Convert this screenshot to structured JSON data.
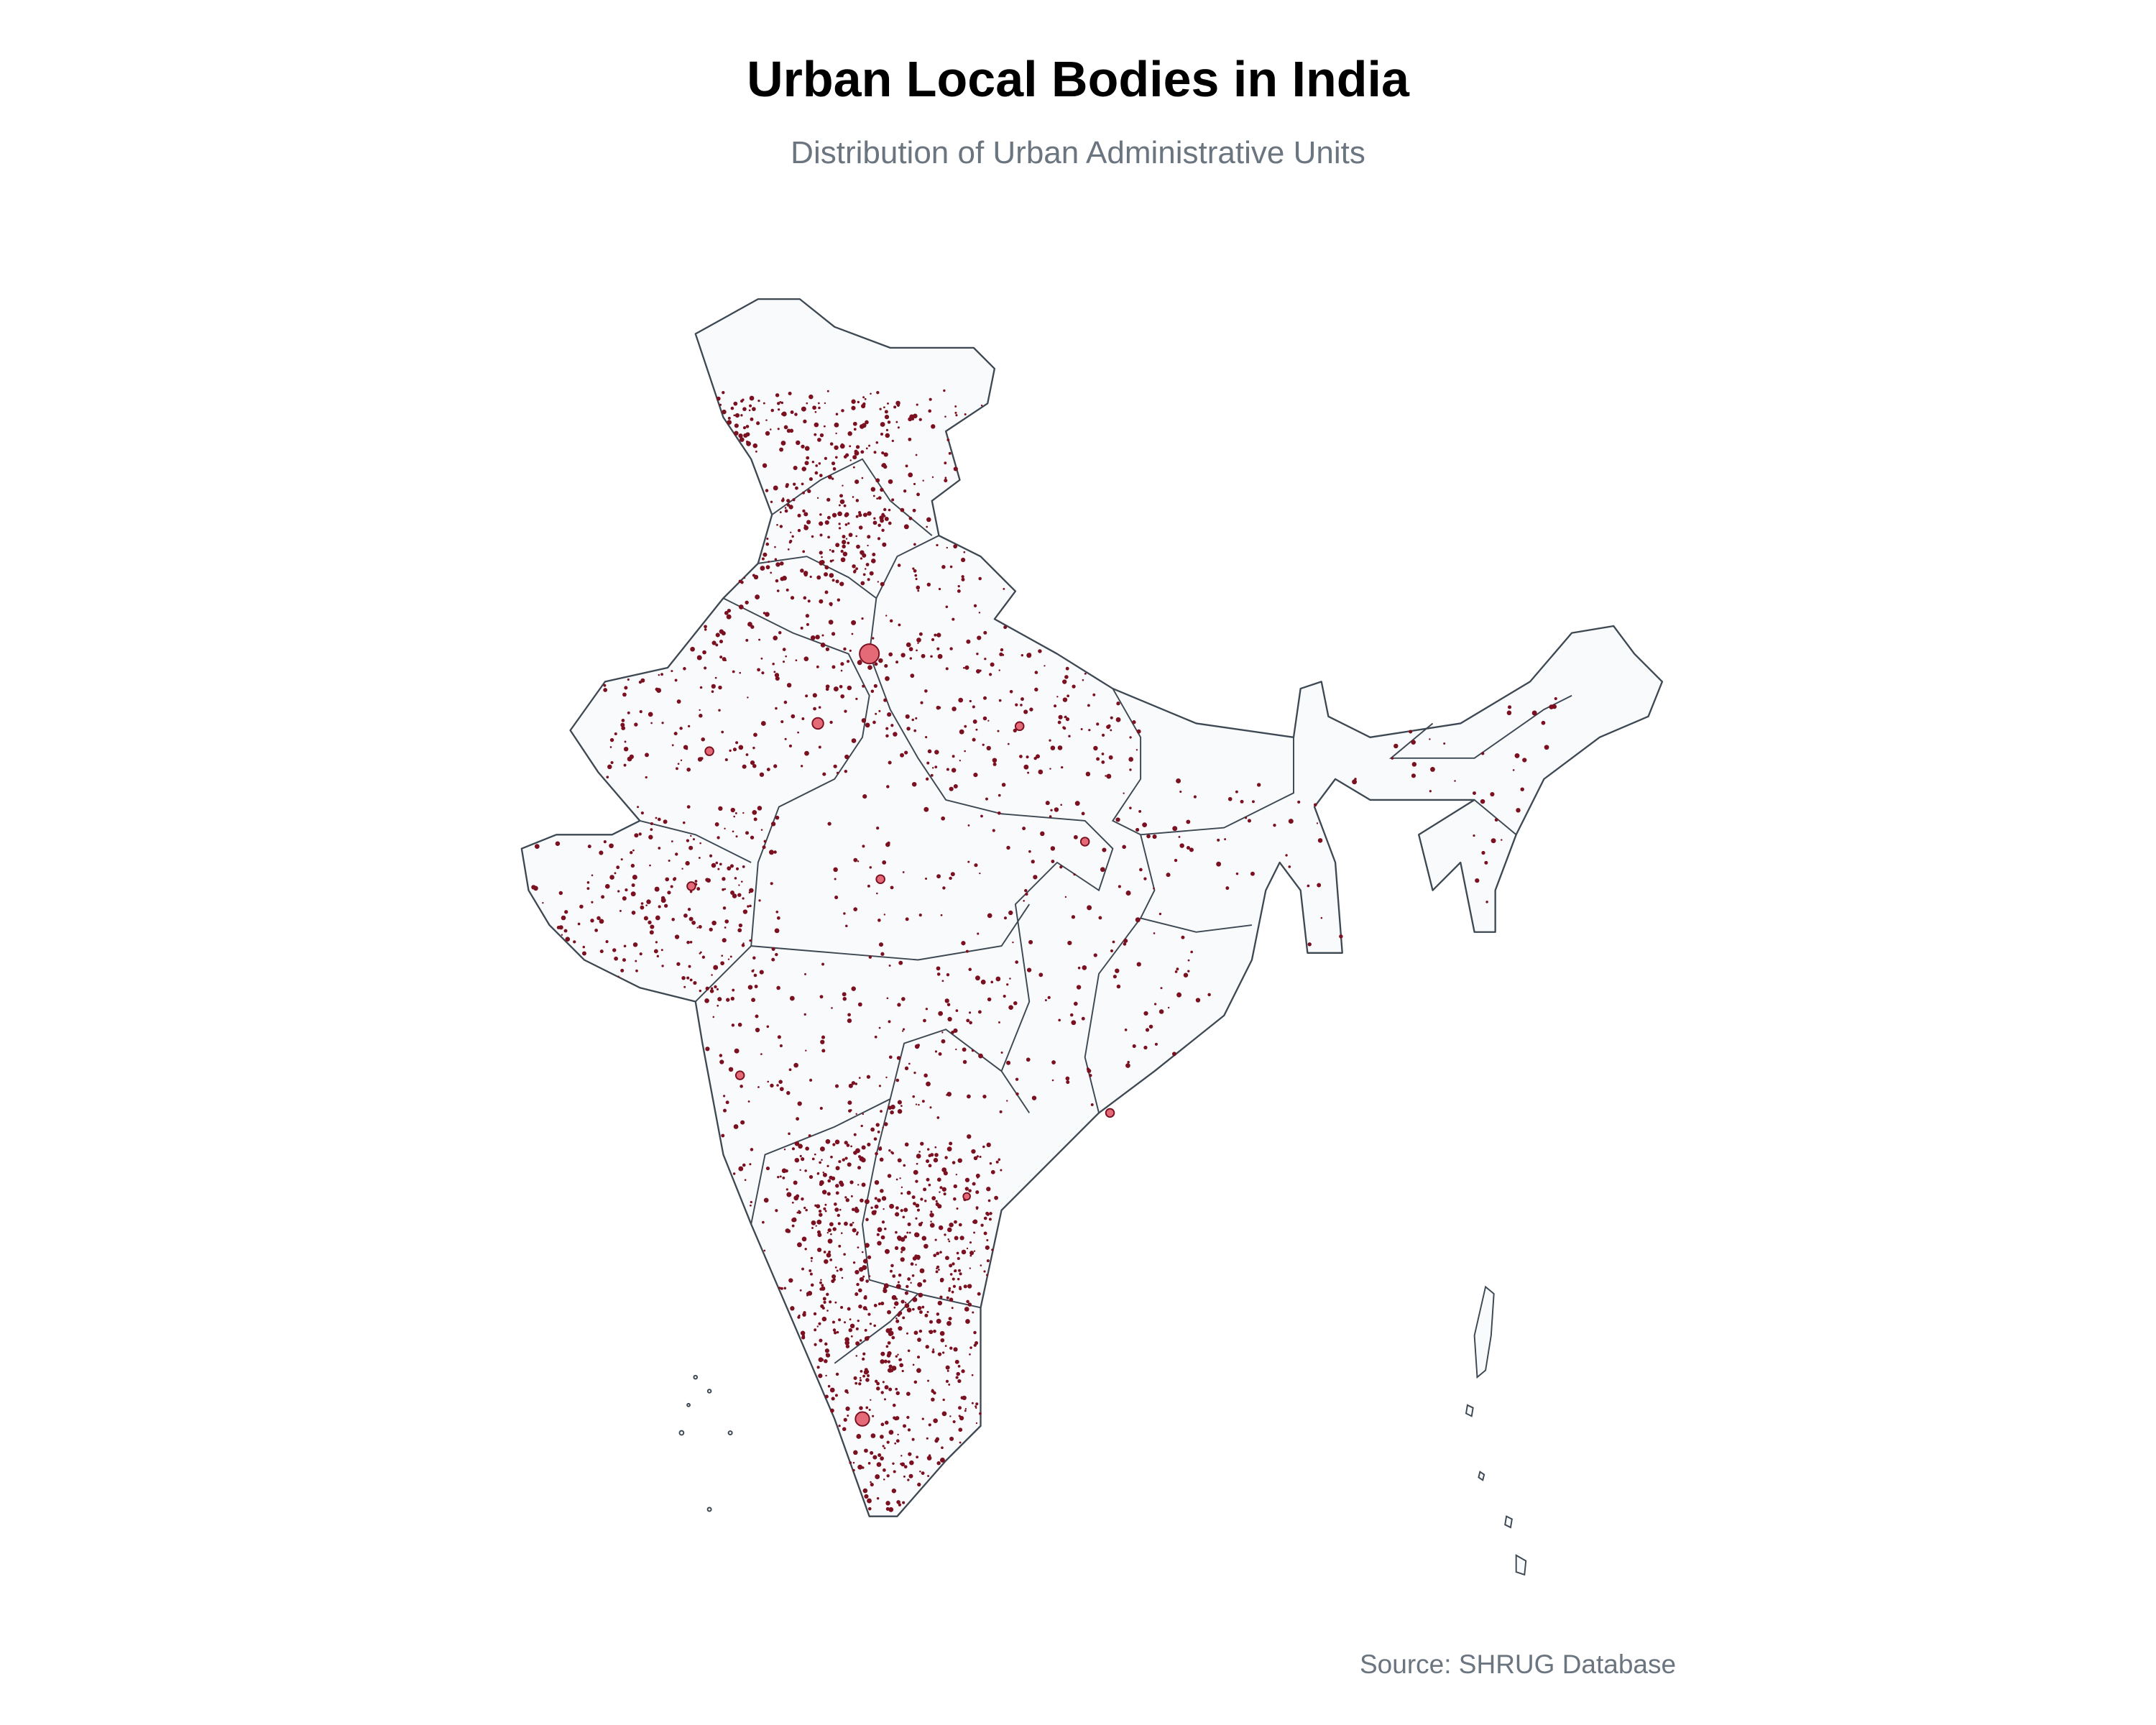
{
  "title": "Urban Local Bodies in India",
  "subtitle": "Distribution of Urban Administrative Units",
  "source": "Source: SHRUG Database",
  "colors": {
    "land_fill": "#f8fafc",
    "boundary": "#3d4852",
    "urban_fill_small": "#7a1020",
    "urban_fill_large": "#e46a78",
    "urban_outline": "#7a1020"
  },
  "legend": null
}
